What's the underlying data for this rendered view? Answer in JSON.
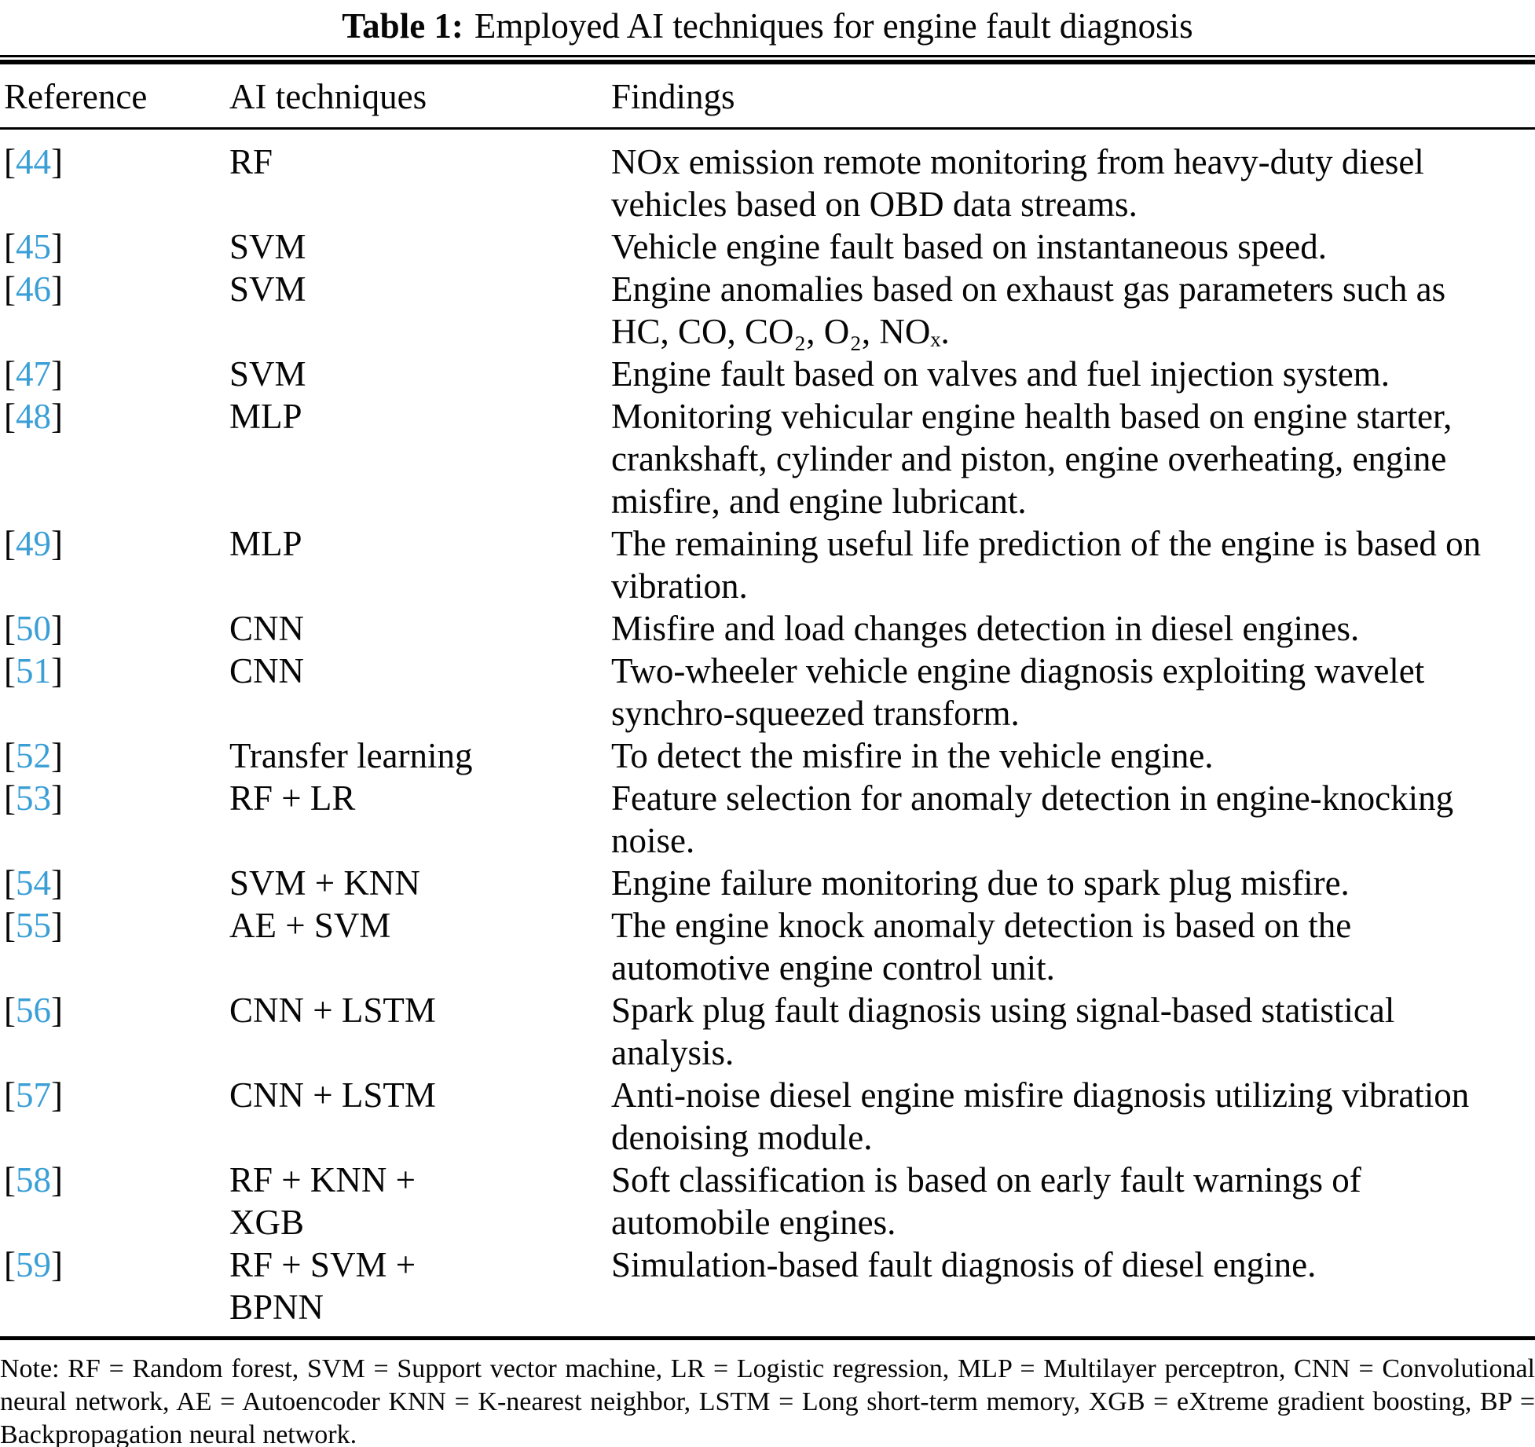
{
  "caption": {
    "label": "Table 1:",
    "text": "Employed AI techniques for engine fault diagnosis"
  },
  "columns": {
    "reference": "Reference",
    "techniques": "AI techniques",
    "findings": "Findings"
  },
  "ref_bracket_open": "[",
  "ref_bracket_close": "]",
  "colors": {
    "citation_blue": "#3a9fd6",
    "text_black": "#060606",
    "background": "#ffffff"
  },
  "table": {
    "rows": [
      {
        "ref": "44",
        "technique": "RF",
        "finding": "NOx emission remote monitoring from heavy-duty diesel\nvehicles based on OBD data streams."
      },
      {
        "ref": "45",
        "technique": "SVM",
        "finding": "Vehicle engine fault based on instantaneous speed."
      },
      {
        "ref": "46",
        "technique": "SVM",
        "finding": "Engine anomalies based on exhaust gas parameters such as\nHC, CO, CO₂, O₂, NOₓ."
      },
      {
        "ref": "47",
        "technique": "SVM",
        "finding": "Engine fault based on valves and fuel injection system."
      },
      {
        "ref": "48",
        "technique": "MLP",
        "finding": "Monitoring vehicular engine health based on engine starter,\ncrankshaft, cylinder and piston, engine overheating, engine\nmisfire, and engine lubricant."
      },
      {
        "ref": "49",
        "technique": "MLP",
        "finding": "The remaining useful life prediction of the engine is based on\nvibration."
      },
      {
        "ref": "50",
        "technique": "CNN",
        "finding": "Misfire and load changes detection in diesel engines."
      },
      {
        "ref": "51",
        "technique": "CNN",
        "finding": "Two-wheeler vehicle engine diagnosis exploiting wavelet\nsynchro-squeezed transform."
      },
      {
        "ref": "52",
        "technique": "Transfer learning",
        "finding": "To detect the misfire in the vehicle engine."
      },
      {
        "ref": "53",
        "technique": "RF + LR",
        "finding": "Feature selection for anomaly detection in engine-knocking\nnoise."
      },
      {
        "ref": "54",
        "technique": "SVM + KNN",
        "finding": "Engine failure monitoring due to spark plug misfire."
      },
      {
        "ref": "55",
        "technique": "AE + SVM",
        "finding": "The engine knock anomaly detection is based on the\nautomotive engine control unit."
      },
      {
        "ref": "56",
        "technique": "CNN + LSTM",
        "finding": "Spark plug fault diagnosis using signal-based statistical\nanalysis."
      },
      {
        "ref": "57",
        "technique": "CNN + LSTM",
        "finding": "Anti-noise diesel engine misfire diagnosis utilizing vibration\ndenoising module."
      },
      {
        "ref": "58",
        "technique": "RF + KNN +\nXGB",
        "finding": "Soft classification is based on early fault warnings of\nautomobile engines."
      },
      {
        "ref": "59",
        "technique": "RF + SVM +\nBPNN",
        "finding": "Simulation-based fault diagnosis of diesel engine."
      }
    ]
  },
  "note": "Note: RF = Random forest, SVM = Support vector machine, LR = Logistic regression, MLP = Multilayer perceptron, CNN = Convolutional neural network, AE = Autoencoder KNN = K-nearest neighbor, LSTM = Long short-term memory, XGB = eXtreme gradient boosting, BP = Backpropagation neural network."
}
